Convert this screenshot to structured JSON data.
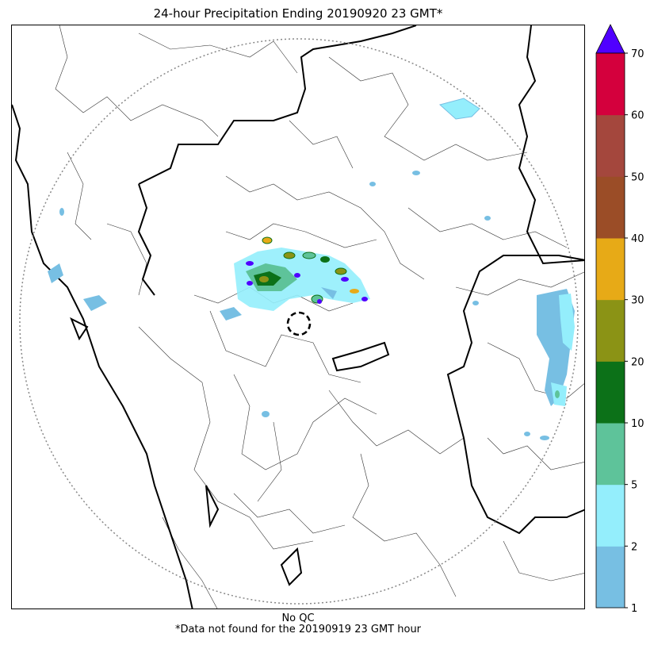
{
  "title": "24-hour Precipitation Ending 20190920 23 GMT*",
  "footer": {
    "qc": "No QC",
    "note": "*Data not found for the 20190919 23 GMT hour"
  },
  "colorbar": {
    "levels": [
      "1",
      "2",
      "5",
      "10",
      "20",
      "30",
      "40",
      "50",
      "60",
      "70"
    ],
    "colors": [
      "#77bfe3",
      "#94eefc",
      "#5ec39a",
      "#0c7118",
      "#8b9315",
      "#e7aa17",
      "#9b4d27",
      "#a4473d",
      "#d4003d"
    ],
    "over_color": "#5000ff"
  },
  "map": {
    "radar_range_ring": "dotted",
    "radar_site_marker": "dashed-circle",
    "borders": [
      "state",
      "district"
    ]
  }
}
